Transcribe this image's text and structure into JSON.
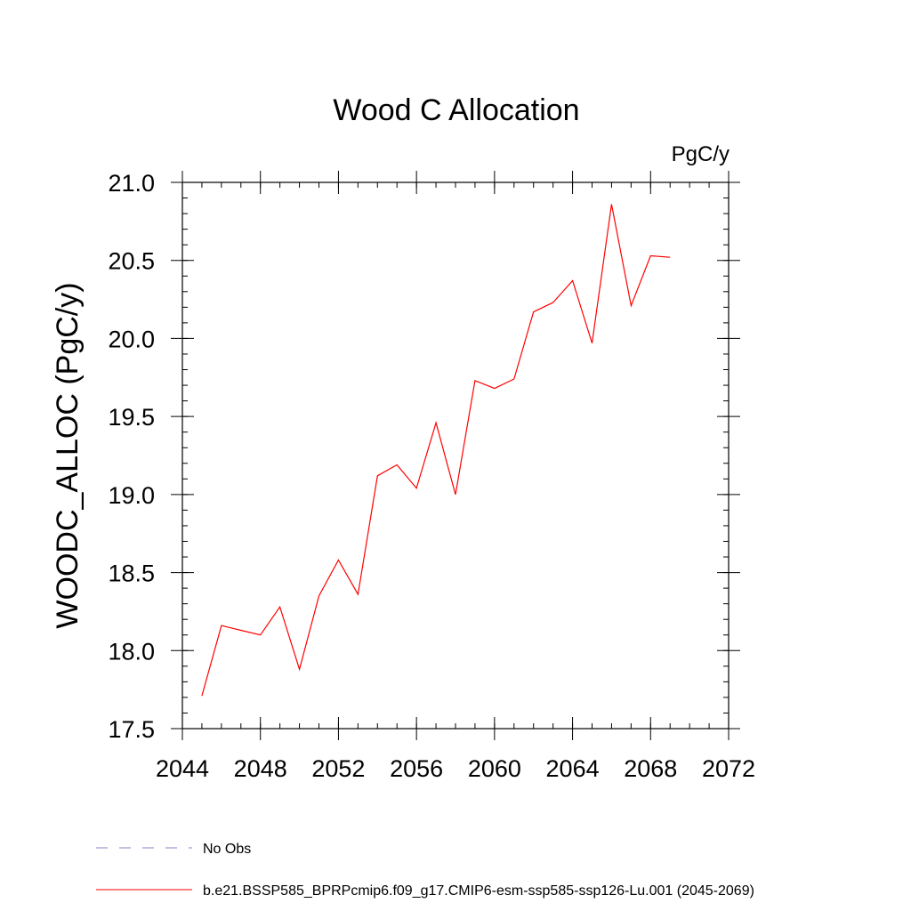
{
  "chart_data": {
    "type": "line",
    "title": "Wood C Allocation",
    "units": "PgC/y",
    "ylabel": "WOODC_ALLOC  (PgC/y)",
    "xlabel": "",
    "xlim": [
      2044,
      2072
    ],
    "ylim": [
      17.5,
      21.0
    ],
    "x_ticks": [
      2044,
      2048,
      2052,
      2056,
      2060,
      2064,
      2068,
      2072
    ],
    "x_tick_labels": [
      "2044",
      "2048",
      "2052",
      "2056",
      "2060",
      "2064",
      "2068",
      "2072"
    ],
    "x_minor_step": 1,
    "y_ticks": [
      17.5,
      18.0,
      18.5,
      19.0,
      19.5,
      20.0,
      20.5,
      21.0
    ],
    "y_tick_labels": [
      "17.5",
      "18.0",
      "18.5",
      "19.0",
      "19.5",
      "20.0",
      "20.5",
      "21.0"
    ],
    "y_minor_step": 0.1,
    "grid": false,
    "legend_placement": "bottom-left",
    "series": [
      {
        "name": "b.e21.BSSP585_BPRPcmip6.f09_g17.CMIP6-esm-ssp585-ssp126-Lu.001 (2045-2069)",
        "color": "#ff0000",
        "dash": "solid",
        "x": [
          2045,
          2046,
          2047,
          2048,
          2049,
          2050,
          2051,
          2052,
          2053,
          2054,
          2055,
          2056,
          2057,
          2058,
          2059,
          2060,
          2061,
          2062,
          2063,
          2064,
          2065,
          2066,
          2067,
          2068,
          2069
        ],
        "y": [
          17.71,
          18.16,
          18.13,
          18.1,
          18.28,
          17.88,
          18.35,
          18.58,
          18.36,
          19.12,
          19.19,
          19.04,
          19.46,
          19.0,
          19.73,
          19.68,
          19.74,
          20.17,
          20.23,
          20.37,
          19.97,
          20.86,
          20.21,
          20.53,
          20.52
        ]
      }
    ],
    "legend": [
      {
        "label": "No Obs",
        "color": "#8080c0",
        "dash": "dashed"
      },
      {
        "label": "b.e21.BSSP585_BPRPcmip6.f09_g17.CMIP6-esm-ssp585-ssp126-Lu.001 (2045-2069)",
        "color": "#ff0000",
        "dash": "solid"
      }
    ]
  }
}
